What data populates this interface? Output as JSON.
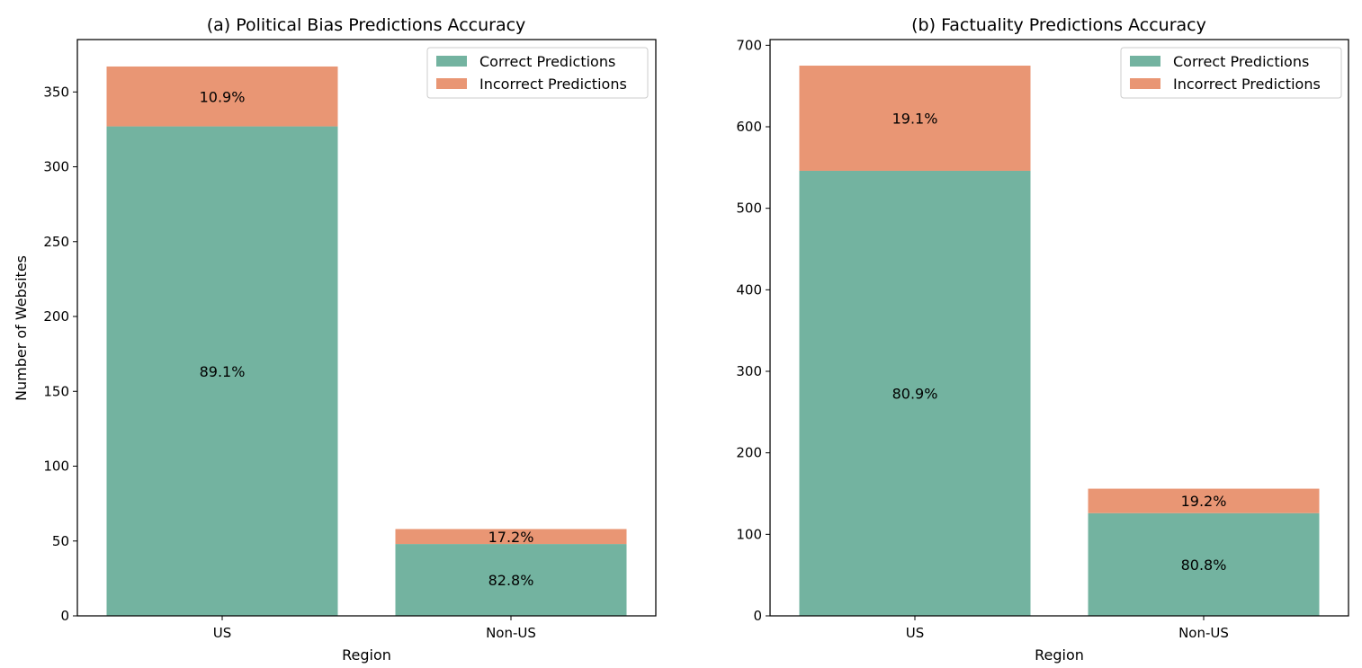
{
  "figure": {
    "y_axis_label": "Number of Websites"
  },
  "chart_data": [
    {
      "type": "bar",
      "stacked": true,
      "title": "(a) Political Bias Predictions Accuracy",
      "xlabel": "Region",
      "ylabel": "Number of Websites",
      "categories": [
        "US",
        "Non-US"
      ],
      "ylim": [
        0,
        385
      ],
      "yticks": [
        0,
        50,
        100,
        150,
        200,
        250,
        300,
        350
      ],
      "series": [
        {
          "name": "Correct Predictions",
          "color": "#73b3a0",
          "values": [
            327,
            48
          ],
          "labels": [
            "89.1%",
            "82.8%"
          ]
        },
        {
          "name": "Incorrect Predictions",
          "color": "#e99674",
          "values": [
            40,
            10
          ],
          "labels": [
            "10.9%",
            "17.2%"
          ]
        }
      ],
      "legend": "top-right",
      "grid": false
    },
    {
      "type": "bar",
      "stacked": true,
      "title": "(b) Factuality Predictions Accuracy",
      "xlabel": "Region",
      "ylabel": "",
      "categories": [
        "US",
        "Non-US"
      ],
      "ylim": [
        0,
        707
      ],
      "yticks": [
        0,
        100,
        200,
        300,
        400,
        500,
        600,
        700
      ],
      "series": [
        {
          "name": "Correct Predictions",
          "color": "#73b3a0",
          "values": [
            546,
            126
          ],
          "labels": [
            "80.9%",
            "80.8%"
          ]
        },
        {
          "name": "Incorrect Predictions",
          "color": "#e99674",
          "values": [
            129,
            30
          ],
          "labels": [
            "19.1%",
            "19.2%"
          ]
        }
      ],
      "legend": "top-right",
      "grid": false
    }
  ]
}
